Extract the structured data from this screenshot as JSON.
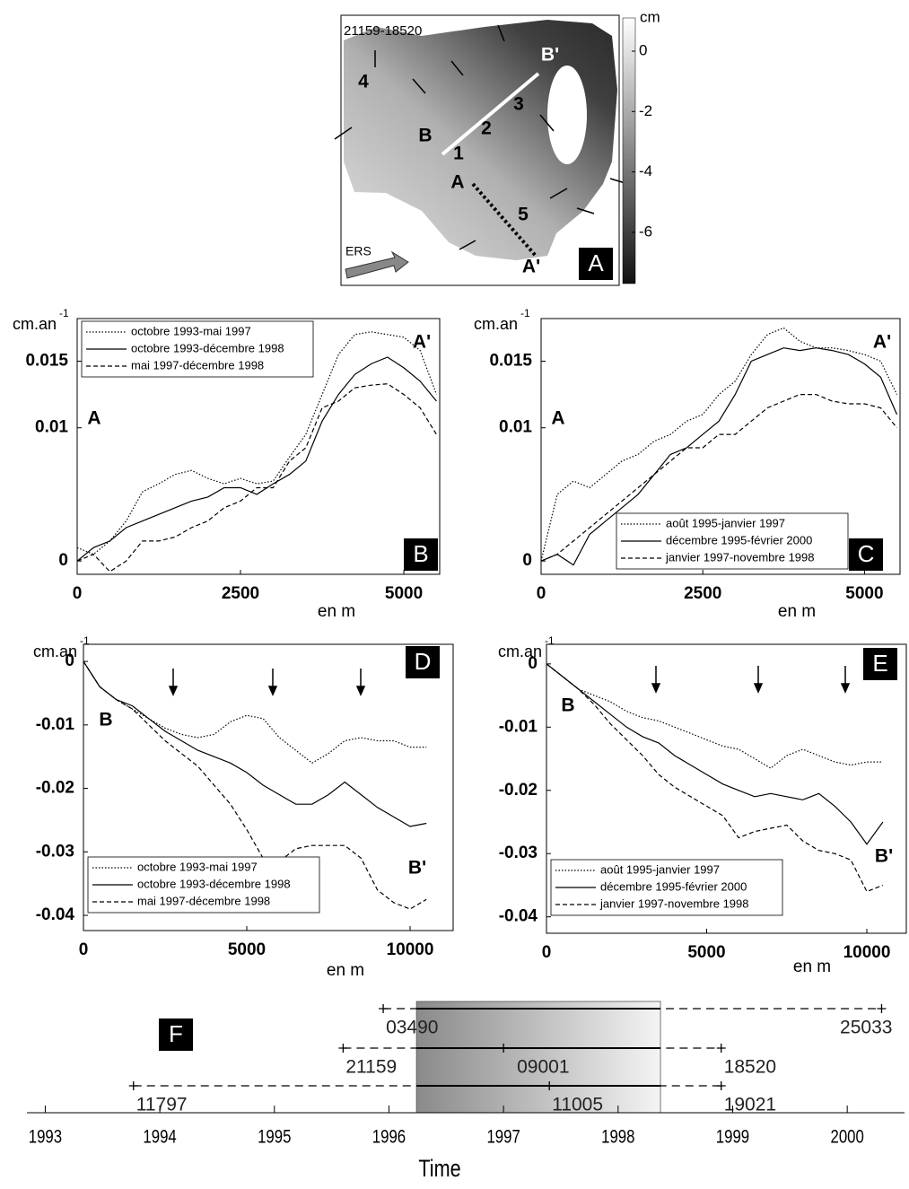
{
  "map": {
    "title": "21159-18520",
    "colorbar_label": "cm",
    "colorbar_ticks": [
      0,
      -2,
      -4,
      -6
    ],
    "colorbar_lim": [
      -7.7,
      1.1
    ],
    "zones": [
      "1",
      "2",
      "3",
      "4",
      "5"
    ],
    "profile_labels": [
      "A",
      "A'",
      "B",
      "B'"
    ],
    "satellite": "ERS",
    "panel_label": "A"
  },
  "chart_data": [
    {
      "type": "line",
      "ylabel": "cm.an",
      "ylabel_superscript": "-1",
      "xlabel": "en m",
      "annotations": [
        "A",
        "A'"
      ],
      "panel_label": "B",
      "legend": "upper left",
      "xlim": [
        0,
        5549
      ],
      "xticks": [
        0,
        2500,
        5000
      ],
      "ylim": [
        -0.001,
        0.0182
      ],
      "yticks": [
        0,
        0.01,
        0.015
      ],
      "x": [
        0,
        250,
        500,
        750,
        1000,
        1250,
        1500,
        1750,
        2000,
        2250,
        2500,
        2750,
        3000,
        3250,
        3500,
        3750,
        4000,
        4250,
        4500,
        4750,
        5000,
        5250,
        5500
      ],
      "series": [
        {
          "name": "octobre 1993-mai 1997",
          "color": "#000000",
          "dash": "dotted",
          "values": [
            0.001,
            0.0005,
            0.0015,
            0.003,
            0.0052,
            0.0058,
            0.0065,
            0.0068,
            0.0062,
            0.0058,
            0.0062,
            0.0058,
            0.006,
            0.0078,
            0.0095,
            0.0125,
            0.0155,
            0.017,
            0.0172,
            0.017,
            0.0168,
            0.0158,
            0.0125
          ]
        },
        {
          "name": "octobre 1993-décembre 1998",
          "color": "#000000",
          "dash": "solid",
          "values": [
            0.0,
            0.001,
            0.0015,
            0.0025,
            0.003,
            0.0035,
            0.004,
            0.0045,
            0.0048,
            0.0055,
            0.0055,
            0.005,
            0.0058,
            0.0065,
            0.0075,
            0.0105,
            0.0125,
            0.014,
            0.0148,
            0.0153,
            0.0145,
            0.0135,
            0.012
          ]
        },
        {
          "name": "mai 1997-décembre 1998",
          "color": "#000000",
          "dash": "dashed",
          "values": [
            0.0,
            0.0005,
            -0.0008,
            0.0,
            0.0015,
            0.0015,
            0.0018,
            0.0025,
            0.003,
            0.004,
            0.0045,
            0.0055,
            0.0055,
            0.0075,
            0.0085,
            0.0115,
            0.012,
            0.013,
            0.0132,
            0.0133,
            0.0125,
            0.0115,
            0.0095
          ]
        }
      ]
    },
    {
      "type": "line",
      "ylabel": "cm.an",
      "ylabel_superscript": "-1",
      "xlabel": "en m",
      "annotations": [
        "A",
        "A'"
      ],
      "panel_label": "C",
      "legend": "lower right",
      "xlim": [
        0,
        5549
      ],
      "xticks": [
        0,
        2500,
        5000
      ],
      "ylim": [
        -0.001,
        0.0182
      ],
      "yticks": [
        0,
        0.01,
        0.015
      ],
      "x": [
        0,
        250,
        500,
        750,
        1000,
        1250,
        1500,
        1750,
        2000,
        2250,
        2500,
        2750,
        3000,
        3250,
        3500,
        3750,
        4000,
        4250,
        4500,
        4750,
        5000,
        5250,
        5500
      ],
      "series": [
        {
          "name": "août 1995-janvier 1997",
          "color": "#000000",
          "dash": "dotted",
          "values": [
            0.0,
            0.005,
            0.006,
            0.0055,
            0.0065,
            0.0075,
            0.008,
            0.009,
            0.0095,
            0.0105,
            0.011,
            0.0125,
            0.0135,
            0.0155,
            0.017,
            0.0175,
            0.0165,
            0.016,
            0.016,
            0.0158,
            0.0155,
            0.015,
            0.0125
          ]
        },
        {
          "name": "décembre 1995-février 2000",
          "color": "#000000",
          "dash": "solid",
          "values": [
            0.0,
            0.0005,
            -0.0003,
            0.002,
            0.003,
            0.004,
            0.005,
            0.0065,
            0.008,
            0.0085,
            0.0095,
            0.0105,
            0.0125,
            0.015,
            0.0155,
            0.016,
            0.0158,
            0.016,
            0.0158,
            0.0155,
            0.0148,
            0.0138,
            0.011
          ]
        },
        {
          "name": "janvier 1997-novembre 1998",
          "color": "#000000",
          "dash": "dashed",
          "values": [
            0.0,
            0.0005,
            0.0015,
            0.0025,
            0.0035,
            0.0045,
            0.0055,
            0.0065,
            0.0075,
            0.0085,
            0.0085,
            0.0095,
            0.0095,
            0.0105,
            0.0115,
            0.012,
            0.0125,
            0.0125,
            0.012,
            0.0118,
            0.0118,
            0.0115,
            0.01
          ]
        }
      ]
    },
    {
      "type": "line",
      "ylabel": "cm.an",
      "ylabel_superscript": "-1",
      "xlabel": "en m",
      "annotations": [
        "B",
        "B'"
      ],
      "panel_label": "D",
      "legend": "lower left",
      "xlim": [
        0,
        11318
      ],
      "xticks": [
        0,
        5000,
        10000
      ],
      "ylim": [
        -0.0424,
        0.0027
      ],
      "yticks": [
        0,
        -0.01,
        -0.02,
        -0.03,
        -0.04
      ],
      "x": [
        0,
        500,
        1000,
        1500,
        2000,
        2500,
        3000,
        3500,
        4000,
        4500,
        5000,
        5500,
        6000,
        6500,
        7000,
        7500,
        8000,
        8500,
        9000,
        9500,
        10000,
        10500
      ],
      "series": [
        {
          "name": "octobre 1993-mai 1997",
          "color": "#000000",
          "dash": "dotted",
          "values": [
            0,
            -0.004,
            -0.006,
            -0.0075,
            -0.009,
            -0.0105,
            -0.0115,
            -0.012,
            -0.0115,
            -0.0095,
            -0.0085,
            -0.009,
            -0.012,
            -0.014,
            -0.016,
            -0.0145,
            -0.0125,
            -0.012,
            -0.0125,
            -0.0125,
            -0.0135,
            -0.0135
          ]
        },
        {
          "name": "octobre 1993-décembre 1998",
          "color": "#000000",
          "dash": "solid",
          "values": [
            0,
            -0.004,
            -0.006,
            -0.007,
            -0.009,
            -0.011,
            -0.0125,
            -0.014,
            -0.015,
            -0.016,
            -0.0175,
            -0.0195,
            -0.021,
            -0.0225,
            -0.0225,
            -0.021,
            -0.019,
            -0.021,
            -0.023,
            -0.0245,
            -0.026,
            -0.0255
          ]
        },
        {
          "name": "mai 1997-décembre 1998",
          "color": "#000000",
          "dash": "dashed",
          "values": [
            0,
            -0.004,
            -0.006,
            -0.0075,
            -0.01,
            -0.0125,
            -0.0145,
            -0.0165,
            -0.0195,
            -0.0225,
            -0.0265,
            -0.031,
            -0.0315,
            -0.0295,
            -0.029,
            -0.029,
            -0.029,
            -0.031,
            -0.036,
            -0.038,
            -0.039,
            -0.0375
          ]
        }
      ]
    },
    {
      "type": "line",
      "ylabel": "cm.an",
      "ylabel_superscript": "-1",
      "xlabel": "en m",
      "annotations": [
        "B",
        "B'"
      ],
      "panel_label": "E",
      "legend": "lower left",
      "xlim": [
        0,
        11232
      ],
      "xticks": [
        0,
        5000,
        10000
      ],
      "ylim": [
        -0.0426,
        0.0031
      ],
      "yticks": [
        0,
        -0.01,
        -0.02,
        -0.03,
        -0.04
      ],
      "x": [
        0,
        500,
        1000,
        1500,
        2000,
        2500,
        3000,
        3500,
        4000,
        4500,
        5000,
        5500,
        6000,
        6500,
        7000,
        7500,
        8000,
        8500,
        9000,
        9500,
        10000,
        10500
      ],
      "series": [
        {
          "name": "août 1995-janvier 1997",
          "color": "#000000",
          "dash": "dotted",
          "values": [
            0,
            -0.002,
            -0.004,
            -0.005,
            -0.006,
            -0.0075,
            -0.0085,
            -0.009,
            -0.01,
            -0.011,
            -0.012,
            -0.013,
            -0.0135,
            -0.015,
            -0.0165,
            -0.0145,
            -0.0135,
            -0.0145,
            -0.0155,
            -0.016,
            -0.0155,
            -0.0155
          ]
        },
        {
          "name": "décembre 1995-février 2000",
          "color": "#000000",
          "dash": "solid",
          "values": [
            0,
            -0.002,
            -0.004,
            -0.006,
            -0.008,
            -0.01,
            -0.0115,
            -0.0125,
            -0.0145,
            -0.016,
            -0.0175,
            -0.019,
            -0.02,
            -0.021,
            -0.0205,
            -0.021,
            -0.0215,
            -0.0205,
            -0.0225,
            -0.025,
            -0.0285,
            -0.025
          ]
        },
        {
          "name": "janvier 1997-novembre 1998",
          "color": "#000000",
          "dash": "dashed",
          "values": [
            0,
            -0.002,
            -0.004,
            -0.0065,
            -0.0095,
            -0.012,
            -0.0145,
            -0.0175,
            -0.0195,
            -0.021,
            -0.0225,
            -0.024,
            -0.0275,
            -0.0265,
            -0.026,
            -0.0255,
            -0.028,
            -0.0295,
            -0.03,
            -0.031,
            -0.036,
            -0.035
          ]
        }
      ]
    },
    {
      "type": "timeline",
      "panel_label": "F",
      "xlabel": "Time",
      "xlim": [
        1992.84,
        2000.5
      ],
      "xticks": [
        1993,
        1994,
        1995,
        1996,
        1997,
        1998,
        1999,
        2000
      ],
      "highlight": [
        1996.24,
        1998.37
      ],
      "rows": [
        [
          {
            "label": "03490",
            "value": 1995.95
          },
          {
            "label": "25033",
            "value": 2000.3
          }
        ],
        [
          {
            "label": "21159",
            "value": 1995.6
          },
          {
            "label": "09001",
            "value": 1997.0
          },
          {
            "label": "18520",
            "value": 1998.9
          }
        ],
        [
          {
            "label": "11797",
            "value": 1993.77
          },
          {
            "label": "11005",
            "value": 1997.4
          },
          {
            "label": "19021",
            "value": 1998.9
          }
        ]
      ]
    }
  ]
}
